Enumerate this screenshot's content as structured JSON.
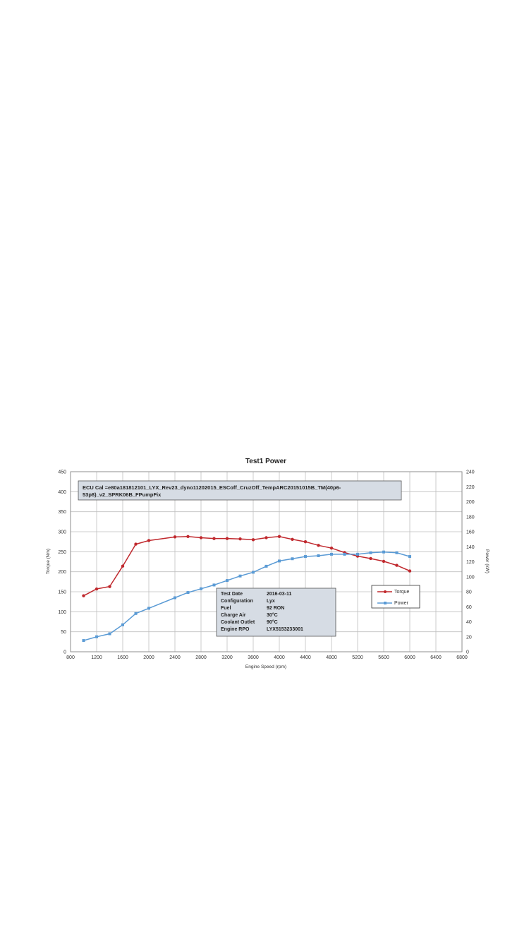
{
  "chart_data": {
    "type": "line",
    "title": "Test1 Power",
    "xlabel": "Engine Speed (rpm)",
    "ylabel_left": "Torque (Nm)",
    "ylabel_right": "Power (kW)",
    "xlim": [
      800,
      6800
    ],
    "xticks": [
      800,
      1200,
      1600,
      2000,
      2400,
      2800,
      3200,
      3600,
      4000,
      4400,
      4800,
      5200,
      5600,
      6000,
      6400,
      6800
    ],
    "ylim_left": [
      0,
      450
    ],
    "yticks_left": [
      0,
      50,
      100,
      150,
      200,
      250,
      300,
      350,
      400,
      450
    ],
    "ylim_right": [
      0,
      240
    ],
    "yticks_right": [
      0,
      20,
      40,
      60,
      80,
      100,
      120,
      140,
      160,
      180,
      200,
      220,
      240
    ],
    "grid": true,
    "legend_position": "right",
    "series": [
      {
        "name": "Torque",
        "axis": "left",
        "color": "#c0282d",
        "x": [
          1000,
          1200,
          1400,
          1600,
          1800,
          2000,
          2400,
          2600,
          2800,
          3000,
          3200,
          3400,
          3600,
          3800,
          4000,
          4200,
          4400,
          4600,
          4800,
          5000,
          5200,
          5400,
          5600,
          5800,
          6000
        ],
        "y": [
          140,
          157,
          163,
          214,
          269,
          278,
          287,
          288,
          285,
          283,
          283,
          282,
          280,
          285,
          288,
          281,
          275,
          266,
          259,
          248,
          239,
          233,
          226,
          216,
          202
        ]
      },
      {
        "name": "Power",
        "axis": "right",
        "color": "#5b9bd5",
        "x": [
          1000,
          1200,
          1400,
          1600,
          1800,
          2000,
          2400,
          2600,
          2800,
          3000,
          3200,
          3400,
          3600,
          3800,
          4000,
          4200,
          4400,
          4600,
          4800,
          5000,
          5200,
          5400,
          5600,
          5800,
          6000
        ],
        "y": [
          15,
          20,
          24,
          36,
          51,
          58,
          72,
          79,
          84,
          89,
          95,
          101,
          106,
          114,
          121,
          124,
          127,
          128,
          130,
          130,
          130,
          132,
          133,
          132,
          127
        ]
      }
    ],
    "annotation_ecu": {
      "line1": "ECU Cal =e80a181812101_LYX_Rev23_dyno11202015_ESCoff_CruzOff_TempARC20151015B_TM(40p6-",
      "line2": "53p8)_v2_SPRK06B_FPumpFix"
    },
    "info_table": [
      {
        "label": "Test Date",
        "value": "2016-03-11"
      },
      {
        "label": "Configuration",
        "value": "Lyx"
      },
      {
        "label": "Fuel",
        "value": "92 RON"
      },
      {
        "label": "Charge Air",
        "value": "30°C"
      },
      {
        "label": "Coolant Outlet",
        "value": "90°C"
      },
      {
        "label": "Engine RPO",
        "value": "LYX5153233001"
      }
    ]
  }
}
